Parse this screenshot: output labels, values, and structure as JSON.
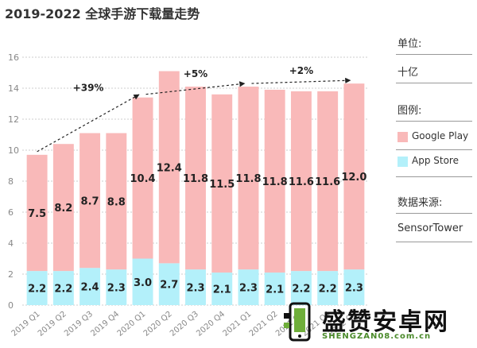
{
  "title": "2019-2022 全球手游下载量走势",
  "side": {
    "unit_title": "单位:",
    "unit_value": "十亿",
    "legend_title": "图例:",
    "source_title": "数据来源:",
    "source_value": "SensorTower"
  },
  "chart_data": {
    "type": "bar",
    "stacked": true,
    "categories": [
      "2019 Q1",
      "2019 Q2",
      "2019 Q3",
      "2019 Q4",
      "2020 Q1",
      "2020 Q2",
      "2020 Q3",
      "2020 Q4",
      "2021 Q1",
      "2021 Q2",
      "2021 Q3",
      "2021 Q4",
      "2022 Q1"
    ],
    "series": [
      {
        "name": "App Store",
        "color": "#b3f0fa",
        "values": [
          2.2,
          2.2,
          2.4,
          2.3,
          3.0,
          2.7,
          2.3,
          2.1,
          2.3,
          2.1,
          2.2,
          2.2,
          2.3
        ]
      },
      {
        "name": "Google Play",
        "color": "#f9b9b9",
        "values": [
          7.5,
          8.2,
          8.7,
          8.8,
          10.4,
          12.4,
          11.8,
          11.5,
          11.8,
          11.8,
          11.6,
          11.6,
          12.0
        ]
      }
    ],
    "ylim": [
      0,
      16
    ],
    "yticks": [
      0,
      2,
      4,
      6,
      8,
      10,
      12,
      14,
      16
    ],
    "grid": true,
    "legend_position": "right",
    "annotations": [
      {
        "text": "+39%",
        "from": 0,
        "to": 4
      },
      {
        "text": "+5%",
        "from": 4,
        "to": 8
      },
      {
        "text": "+2%",
        "from": 8,
        "to": 12
      }
    ]
  },
  "watermark": {
    "brand": "盛赞安卓网",
    "url": "SHENGZAN08.com.cn"
  }
}
